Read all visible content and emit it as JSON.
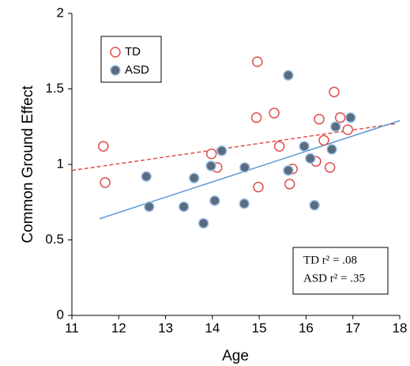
{
  "chart_data": {
    "type": "scatter",
    "xlabel": "Age",
    "ylabel": "Common Ground Effect",
    "xlim": [
      11,
      18
    ],
    "ylim": [
      0,
      2
    ],
    "xticks": [
      11,
      12,
      13,
      14,
      15,
      16,
      17,
      18
    ],
    "yticks": [
      0,
      0.5,
      1,
      1.5,
      2
    ],
    "series": [
      {
        "name": "TD",
        "color": "#e0504f",
        "marker": "open",
        "x": [
          11.67,
          11.71,
          13.98,
          14.1,
          14.96,
          14.94,
          15.32,
          15.43,
          14.98,
          15.71,
          15.65,
          16.28,
          16.38,
          16.21,
          16.51,
          16.6,
          16.73,
          16.89
        ],
        "values": [
          1.12,
          0.88,
          1.07,
          0.98,
          1.68,
          1.31,
          1.34,
          1.12,
          0.85,
          0.97,
          0.87,
          1.3,
          1.16,
          1.02,
          0.98,
          1.48,
          1.31,
          1.23
        ]
      },
      {
        "name": "ASD",
        "color": "#5b6b80",
        "marker": "filled",
        "x": [
          12.59,
          12.65,
          13.39,
          13.61,
          13.81,
          13.97,
          14.05,
          14.2,
          14.68,
          14.69,
          15.62,
          15.62,
          15.96,
          16.09,
          16.18,
          16.55,
          16.63,
          16.95
        ],
        "values": [
          0.92,
          0.72,
          0.72,
          0.91,
          0.61,
          0.99,
          0.76,
          1.09,
          0.74,
          0.98,
          1.59,
          0.96,
          1.12,
          1.04,
          0.73,
          1.1,
          1.25,
          1.31
        ]
      }
    ],
    "trend_lines": [
      {
        "color": "#e0504f",
        "dashed": true,
        "x": [
          11,
          17.93
        ],
        "values": [
          0.96,
          1.27
        ]
      },
      {
        "color": "#5b9bd5",
        "dashed": false,
        "x": [
          11.59,
          18
        ],
        "values": [
          0.64,
          1.29
        ]
      }
    ],
    "annotations": [
      "TD r² = .08",
      "ASD r² = .35"
    ]
  }
}
